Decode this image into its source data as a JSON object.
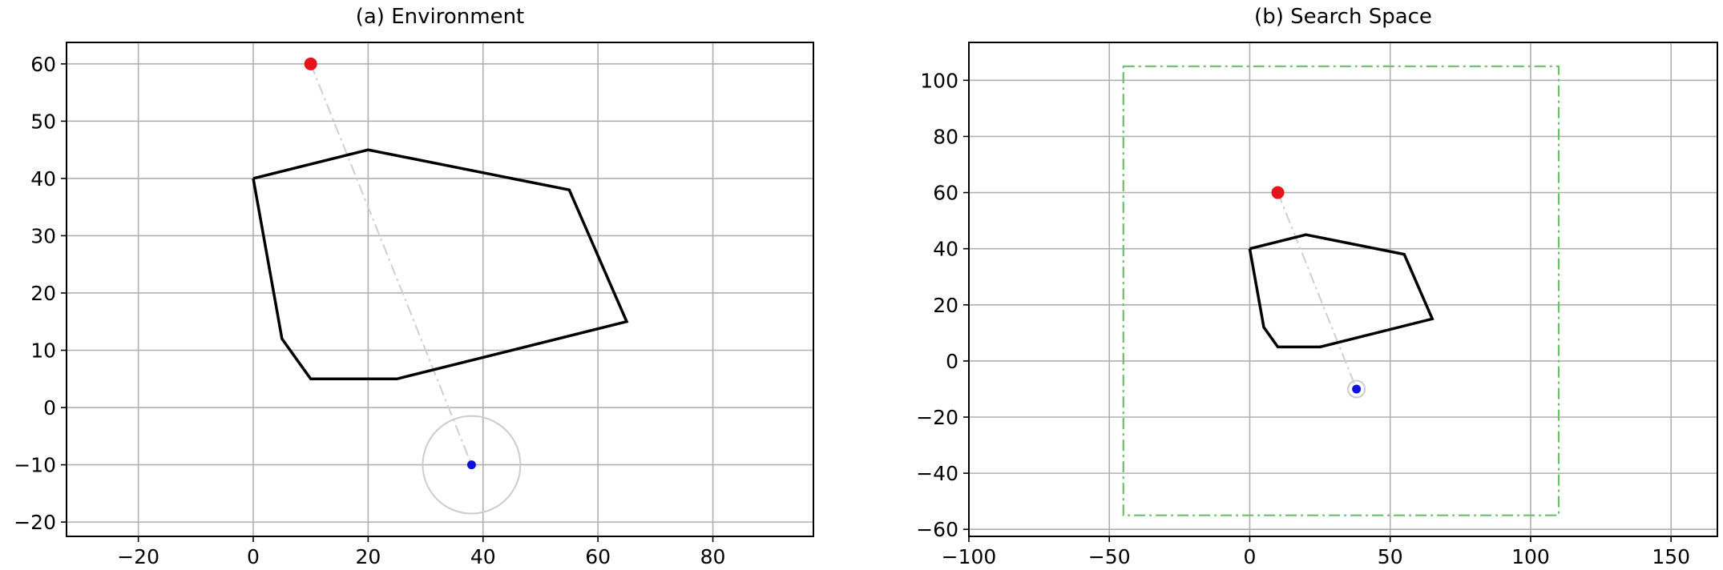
{
  "chart_data": [
    {
      "type": "scatter",
      "title": "(a)  Environment",
      "xlim": [
        -32.5,
        97.5
      ],
      "ylim": [
        -22.5,
        63.75
      ],
      "xticks": [
        -20,
        0,
        20,
        40,
        60,
        80
      ],
      "yticks": [
        -20,
        -10,
        0,
        10,
        20,
        30,
        40,
        50,
        60
      ],
      "grid": true,
      "obstacle": [
        [
          0,
          40
        ],
        [
          20,
          45
        ],
        [
          55,
          38
        ],
        [
          65,
          15
        ],
        [
          25,
          5
        ],
        [
          10,
          5
        ],
        [
          5,
          12
        ],
        [
          0,
          40
        ]
      ],
      "start": {
        "x": 10,
        "y": 60,
        "color": "#e8141b"
      },
      "goal": {
        "x": 38,
        "y": -10,
        "color": "#1010e0"
      },
      "goal_radius": 8.5,
      "straight_line": [
        [
          10,
          60
        ],
        [
          38,
          -10
        ]
      ]
    },
    {
      "type": "scatter",
      "title": "(b)  Search Space",
      "xlim": [
        -100,
        166.5
      ],
      "ylim": [
        -62.5,
        113.5
      ],
      "xticks": [
        -100,
        -50,
        0,
        50,
        100,
        150
      ],
      "yticks": [
        -60,
        -40,
        -20,
        0,
        20,
        40,
        60,
        80,
        100
      ],
      "grid": true,
      "obstacle": [
        [
          0,
          40
        ],
        [
          20,
          45
        ],
        [
          55,
          38
        ],
        [
          65,
          15
        ],
        [
          25,
          5
        ],
        [
          10,
          5
        ],
        [
          5,
          12
        ],
        [
          0,
          40
        ]
      ],
      "start": {
        "x": 10,
        "y": 60,
        "color": "#e8141b"
      },
      "goal": {
        "x": 38,
        "y": -10,
        "color": "#1010e0"
      },
      "goal_radius": 3,
      "straight_line": [
        [
          10,
          60
        ],
        [
          38,
          -10
        ]
      ],
      "search_bounds": {
        "x": [
          -45,
          110
        ],
        "y": [
          -55,
          105
        ],
        "color": "#6bbf6b"
      }
    }
  ]
}
